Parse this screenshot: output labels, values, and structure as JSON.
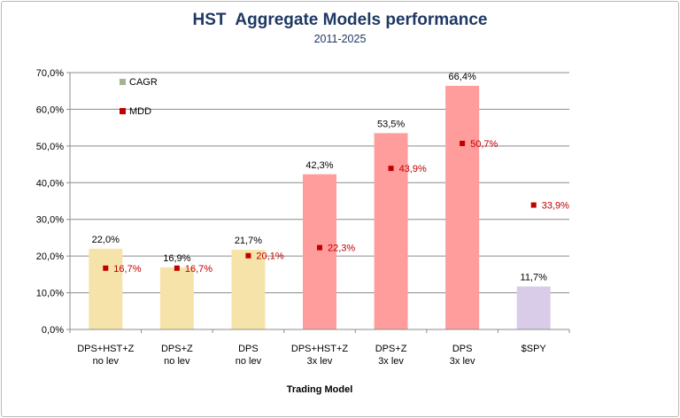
{
  "chart_data": {
    "type": "bar",
    "title": "HST  Aggregate Models performance",
    "subtitle": "2011-2025",
    "xlabel": "Trading Model",
    "ylabel": "",
    "ylim": [
      0,
      70
    ],
    "ytick_step": 10,
    "ytick_labels": [
      "0,0%",
      "10,0%",
      "20,0%",
      "30,0%",
      "40,0%",
      "50,0%",
      "60,0%",
      "70,0%"
    ],
    "grid": true,
    "legend_position": "top-left",
    "categories": [
      [
        "DPS+HST+Z",
        "no lev"
      ],
      [
        "DPS+Z",
        "no lev"
      ],
      [
        "DPS",
        "no lev"
      ],
      [
        "DPS+HST+Z",
        "3x lev"
      ],
      [
        "DPS+Z",
        "3x lev"
      ],
      [
        "DPS",
        "3x lev"
      ],
      [
        "$SPY"
      ]
    ],
    "series": [
      {
        "name": "CAGR",
        "kind": "bar",
        "values": [
          22.0,
          16.9,
          21.7,
          42.3,
          53.5,
          66.4,
          11.7
        ],
        "labels": [
          "22,0%",
          "16,9%",
          "21,7%",
          "42,3%",
          "53,5%",
          "66,4%",
          "11,7%"
        ],
        "bar_colors": [
          "#f5e3a9",
          "#f5e3a9",
          "#f5e3a9",
          "#ff9c9c",
          "#ff9c9c",
          "#ff9c9c",
          "#d9cce8"
        ],
        "legend_color": "#a4b394"
      },
      {
        "name": "MDD",
        "kind": "marker",
        "values": [
          16.7,
          16.7,
          20.1,
          22.3,
          43.9,
          50.7,
          33.9
        ],
        "labels": [
          "16,7%",
          "16,7%",
          "20,1%",
          "22,3%",
          "43,9%",
          "50,7%",
          "33,9%"
        ],
        "color": "#c00000"
      }
    ]
  }
}
